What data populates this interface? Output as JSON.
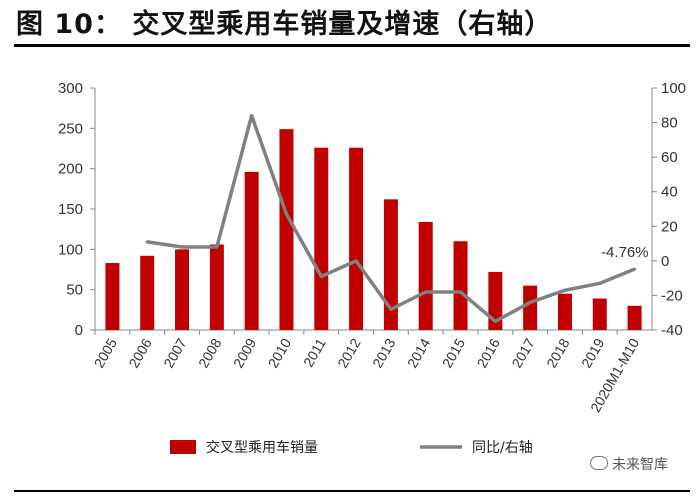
{
  "title": "图 10：  交叉型乘用车销量及增速（右轴）",
  "watermark": "未来智库",
  "chart_data": {
    "type": "bar",
    "categories": [
      "2005",
      "2006",
      "2007",
      "2008",
      "2009",
      "2010",
      "2011",
      "2012",
      "2013",
      "2014",
      "2015",
      "2016",
      "2017",
      "2018",
      "2019",
      "2020M1-M10"
    ],
    "series": [
      {
        "name": "交叉型乘用车销量",
        "type": "bar",
        "axis": "left",
        "color": "#c00000",
        "values": [
          83,
          92,
          100,
          106,
          196,
          249,
          226,
          226,
          162,
          134,
          110,
          72,
          55,
          45,
          39,
          30
        ]
      },
      {
        "name": "同比/右轴",
        "type": "line",
        "axis": "right",
        "color": "#808080",
        "values": [
          null,
          11,
          8,
          8,
          84,
          27,
          -9,
          0,
          -28,
          -18,
          -18,
          -35,
          -24,
          -17,
          -13,
          -4.76
        ]
      }
    ],
    "y_left": {
      "ylim": [
        0,
        300
      ],
      "ticks": [
        0,
        50,
        100,
        150,
        200,
        250,
        300
      ]
    },
    "y_right": {
      "ylim": [
        -40,
        100
      ],
      "ticks": [
        -40,
        -20,
        0,
        20,
        40,
        60,
        80,
        100
      ]
    },
    "annotations": [
      {
        "text": "-4.76%",
        "category": "2020M1-M10",
        "series": "同比/右轴"
      }
    ],
    "legend": "bottom",
    "grid": false
  }
}
